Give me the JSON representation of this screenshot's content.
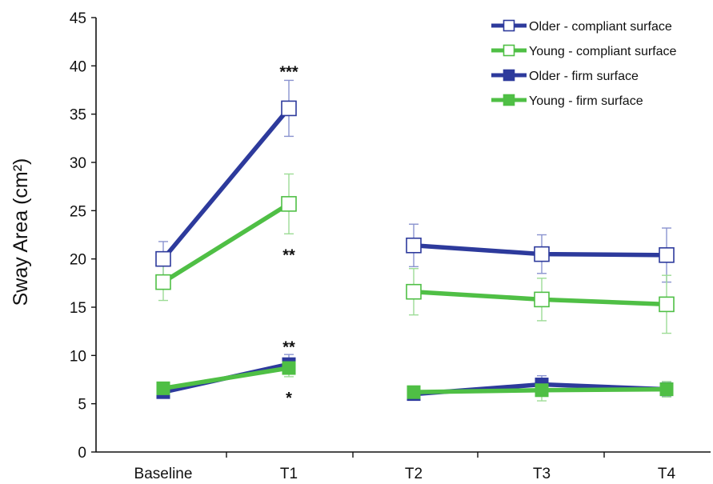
{
  "chart_data": {
    "type": "line",
    "title": "",
    "xlabel": "",
    "ylabel": "Sway Area (cm²)",
    "categories": [
      "Baseline",
      "T1",
      "T2",
      "T3",
      "T4"
    ],
    "ylim": [
      0,
      45
    ],
    "yticks": [
      0,
      5,
      10,
      15,
      20,
      25,
      30,
      35,
      40,
      45
    ],
    "grid": false,
    "legend_position": "top-right",
    "series": [
      {
        "name": "Older - compliant surface",
        "color": "#2d3a9c",
        "marker": "open-square",
        "values": [
          20.0,
          35.6,
          21.4,
          20.5,
          20.4
        ],
        "error": [
          1.8,
          2.9,
          2.2,
          2.0,
          2.8
        ]
      },
      {
        "name": "Young - compliant surface",
        "color": "#4fbf45",
        "marker": "open-square",
        "values": [
          17.6,
          25.7,
          16.6,
          15.8,
          15.3
        ],
        "error": [
          1.9,
          3.1,
          2.4,
          2.2,
          3.0
        ]
      },
      {
        "name": "Older - firm surface",
        "color": "#2d3a9c",
        "marker": "filled-square",
        "values": [
          6.2,
          9.1,
          6.0,
          7.0,
          6.5
        ],
        "error": [
          0.5,
          1.0,
          0.4,
          0.9,
          0.7
        ]
      },
      {
        "name": "Young - firm surface",
        "color": "#4fbf45",
        "marker": "filled-square",
        "values": [
          6.6,
          8.7,
          6.2,
          6.4,
          6.5
        ],
        "error": [
          0.6,
          0.9,
          0.5,
          1.1,
          0.8
        ]
      }
    ],
    "annotations": [
      {
        "text": "***",
        "category": "T1",
        "y": 39.5
      },
      {
        "text": "**",
        "category": "T1",
        "y": 20.5
      },
      {
        "text": "**",
        "category": "T1",
        "y": 11.0
      },
      {
        "text": "*",
        "category": "T1",
        "y": 5.7
      }
    ]
  }
}
